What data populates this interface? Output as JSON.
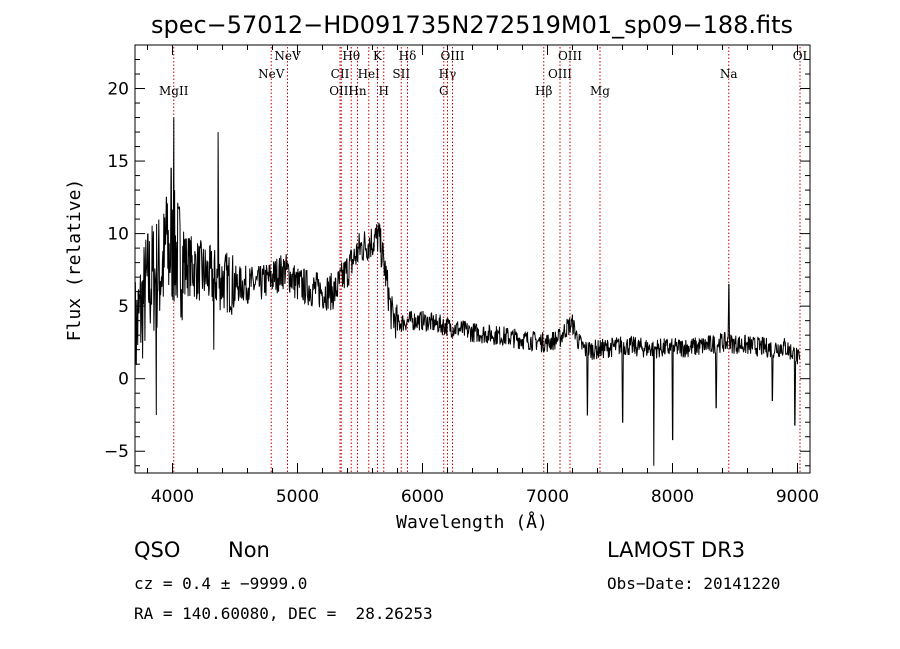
{
  "chart_data": {
    "type": "line",
    "title": "spec−57012−HD091735N272519M01_sp09−188.fits",
    "xlabel": "Wavelength (Å)",
    "ylabel": "Flux (relative)",
    "xlim": [
      3700,
      9100
    ],
    "ylim": [
      -6.5,
      23
    ],
    "xticks": [
      4000,
      5000,
      6000,
      7000,
      8000,
      9000
    ],
    "yticks": [
      -5,
      0,
      5,
      10,
      15,
      20
    ],
    "line_color": "#000000",
    "marker_color": "#cc0000",
    "spectrum_knots": [
      [
        3700,
        3.0
      ],
      [
        3800,
        6.5
      ],
      [
        3900,
        7.5
      ],
      [
        4000,
        9.0
      ],
      [
        4100,
        8.0
      ],
      [
        4300,
        7.0
      ],
      [
        4500,
        6.5
      ],
      [
        4700,
        6.5
      ],
      [
        4800,
        7.0
      ],
      [
        4900,
        7.5
      ],
      [
        5000,
        6.5
      ],
      [
        5200,
        6.0
      ],
      [
        5300,
        6.0
      ],
      [
        5400,
        7.5
      ],
      [
        5500,
        9.0
      ],
      [
        5600,
        9.5
      ],
      [
        5650,
        9.8
      ],
      [
        5700,
        7.5
      ],
      [
        5750,
        4.5
      ],
      [
        5800,
        3.8
      ],
      [
        5900,
        4.0
      ],
      [
        6000,
        4.0
      ],
      [
        6200,
        3.6
      ],
      [
        6400,
        3.2
      ],
      [
        6600,
        3.0
      ],
      [
        6800,
        2.7
      ],
      [
        7000,
        2.5
      ],
      [
        7100,
        2.8
      ],
      [
        7150,
        3.5
      ],
      [
        7200,
        3.8
      ],
      [
        7250,
        2.5
      ],
      [
        7300,
        2.0
      ],
      [
        7400,
        2.0
      ],
      [
        7600,
        2.3
      ],
      [
        7800,
        2.1
      ],
      [
        8000,
        2.1
      ],
      [
        8200,
        2.2
      ],
      [
        8400,
        2.5
      ],
      [
        8600,
        2.3
      ],
      [
        8800,
        2.1
      ],
      [
        8900,
        2.2
      ],
      [
        9000,
        1.5
      ],
      [
        9020,
        1.0
      ]
    ],
    "spectrum_features": [
      {
        "x": 3870,
        "y": -2.5
      },
      {
        "x": 3950,
        "y": 12.5
      },
      {
        "x": 3990,
        "y": 14.5
      },
      {
        "x": 4010,
        "y": 18.0
      },
      {
        "x": 4365,
        "y": 17.0
      },
      {
        "x": 4330,
        "y": 2.0
      },
      {
        "x": 7320,
        "y": -2.5
      },
      {
        "x": 7600,
        "y": -3.0
      },
      {
        "x": 7850,
        "y": -6.0
      },
      {
        "x": 8000,
        "y": -4.2
      },
      {
        "x": 8350,
        "y": -2.0
      },
      {
        "x": 8450,
        "y": 6.5
      },
      {
        "x": 8800,
        "y": -1.5
      },
      {
        "x": 8980,
        "y": -3.2
      }
    ],
    "line_markers": [
      {
        "x": 4010,
        "label": "MgII",
        "row": 2
      },
      {
        "x": 4790,
        "label": "NeV",
        "row": 1
      },
      {
        "x": 4920,
        "label": "NeV",
        "row": 0
      },
      {
        "x": 5340,
        "label": "CII",
        "row": 1
      },
      {
        "x": 5350,
        "label": "OIII",
        "row": 2
      },
      {
        "x": 5430,
        "label": "Hθ",
        "row": 0
      },
      {
        "x": 5480,
        "label": "Hn",
        "row": 2
      },
      {
        "x": 5570,
        "label": "HeI",
        "row": 1
      },
      {
        "x": 5640,
        "label": "K",
        "row": 0
      },
      {
        "x": 5690,
        "label": "H",
        "row": 2
      },
      {
        "x": 5830,
        "label": "SII",
        "row": 1
      },
      {
        "x": 5880,
        "label": "Hδ",
        "row": 0
      },
      {
        "x": 6170,
        "label": "G",
        "row": 2
      },
      {
        "x": 6200,
        "label": "Hγ",
        "row": 1
      },
      {
        "x": 6240,
        "label": "OIII",
        "row": 0
      },
      {
        "x": 6970,
        "label": "Hβ",
        "row": 2
      },
      {
        "x": 7100,
        "label": "OIII",
        "row": 1
      },
      {
        "x": 7180,
        "label": "OIII",
        "row": 0
      },
      {
        "x": 7420,
        "label": "Mg",
        "row": 2
      },
      {
        "x": 8450,
        "label": "Na",
        "row": 1
      },
      {
        "x": 9020,
        "label": "OI",
        "row": 0
      }
    ]
  },
  "info": {
    "class": "QSO",
    "subclass": "Non",
    "survey": "LAMOST DR3",
    "cz": "cz = 0.4 ± −9999.0",
    "obs_date": "Obs−Date: 20141220",
    "coords": "RA = 140.60080, DEC =  28.26253"
  }
}
